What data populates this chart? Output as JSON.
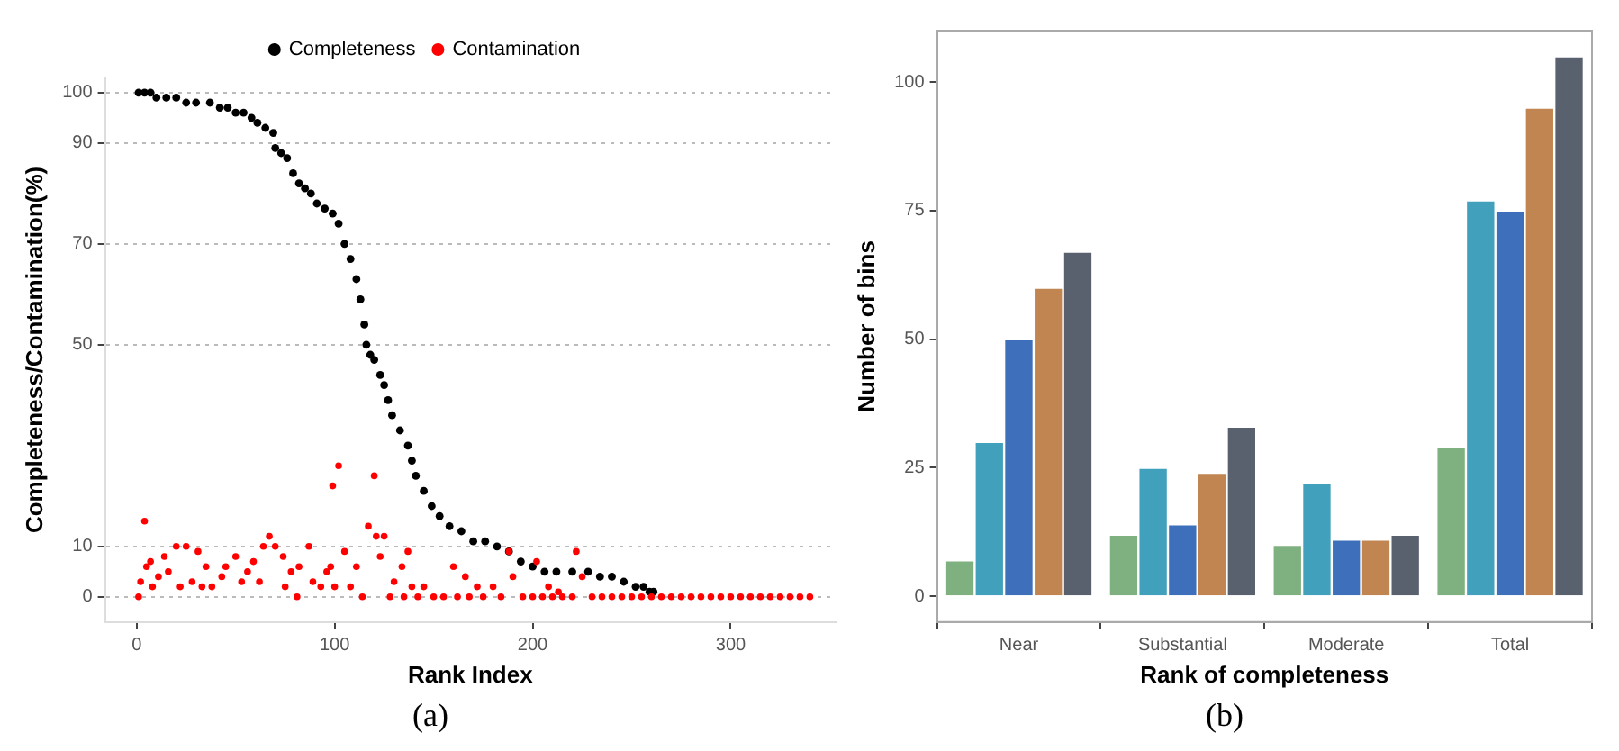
{
  "chart_data": [
    {
      "type": "scatter",
      "xlabel": "Rank Index",
      "ylabel": "Completeness/Contamination(%)",
      "xlim": [
        -16,
        353
      ],
      "ylim": [
        -5,
        103
      ],
      "xticks": [
        0,
        100,
        200,
        300
      ],
      "yticks": [
        0,
        10,
        50,
        70,
        90,
        100
      ],
      "grid": "y",
      "legend": "top",
      "marker": "circle",
      "annotations": [
        "(a)"
      ],
      "series": [
        {
          "name": "Completeness",
          "color": "#000000",
          "x": [
            1,
            4,
            7,
            10,
            15,
            20,
            25,
            30,
            37,
            42,
            46,
            50,
            54,
            58,
            61,
            65,
            69,
            70,
            73,
            76,
            79,
            82,
            85,
            88,
            91,
            95,
            99,
            102,
            105,
            108,
            111,
            113,
            115,
            116,
            118,
            120,
            123,
            125,
            127,
            129,
            133,
            137,
            139,
            141,
            145,
            149,
            153,
            158,
            164,
            170,
            176,
            182,
            188,
            194,
            200,
            206,
            212,
            220,
            228,
            234,
            240,
            246,
            252,
            256,
            259,
            261
          ],
          "values": [
            100,
            100,
            100,
            99,
            99,
            99,
            98,
            98,
            98,
            97,
            97,
            96,
            96,
            95,
            94,
            93,
            92,
            89,
            88,
            87,
            84,
            82,
            81,
            80,
            78,
            77,
            76,
            74,
            70,
            67,
            63,
            59,
            54,
            50,
            48,
            47,
            44,
            42,
            39,
            36,
            33,
            30,
            27,
            24,
            21,
            18,
            16,
            14,
            13,
            11,
            11,
            10,
            9,
            7,
            6,
            5,
            5,
            5,
            5,
            4,
            4,
            3,
            2,
            2,
            1,
            1
          ]
        },
        {
          "name": "Contamination",
          "color": "#ff0000",
          "x": [
            1,
            2,
            4,
            5,
            7,
            8,
            11,
            14,
            16,
            20,
            22,
            25,
            28,
            31,
            33,
            35,
            38,
            43,
            45,
            50,
            53,
            56,
            59,
            62,
            64,
            67,
            70,
            74,
            75,
            78,
            81,
            82,
            87,
            89,
            93,
            96,
            98,
            99,
            100,
            102,
            105,
            108,
            111,
            114,
            117,
            120,
            121,
            123,
            125,
            128,
            130,
            134,
            137,
            139,
            145,
            160,
            166,
            172,
            180,
            188,
            190,
            202,
            208,
            213,
            222,
            225,
            135,
            142,
            150,
            155,
            162,
            168,
            175,
            184,
            195,
            200,
            205,
            210,
            215,
            220,
            230,
            235,
            240,
            245,
            250,
            255,
            260,
            265,
            270,
            275,
            280,
            285,
            290,
            295,
            300,
            305,
            310,
            315,
            320,
            325,
            330,
            335,
            340
          ],
          "values": [
            0,
            3,
            15,
            6,
            7,
            2,
            4,
            8,
            5,
            10,
            2,
            10,
            3,
            9,
            2,
            6,
            2,
            4,
            6,
            8,
            3,
            5,
            7,
            3,
            10,
            12,
            10,
            8,
            2,
            5,
            0,
            6,
            10,
            3,
            2,
            5,
            6,
            22,
            2,
            26,
            9,
            2,
            6,
            0,
            14,
            24,
            12,
            8,
            12,
            0,
            3,
            6,
            9,
            2,
            2,
            6,
            4,
            2,
            2,
            9,
            4,
            7,
            2,
            1,
            9,
            4,
            0,
            0,
            0,
            0,
            0,
            0,
            0,
            0,
            0,
            0,
            0,
            0,
            0,
            0,
            0,
            0,
            0,
            0,
            0,
            0,
            0,
            0,
            0,
            0,
            0,
            0,
            0,
            0,
            0,
            0,
            0,
            0,
            0,
            0,
            0,
            0,
            0
          ]
        }
      ]
    },
    {
      "type": "bar",
      "xlabel": "Rank of completeness",
      "ylabel": "Number of bins",
      "categories": [
        "Near",
        "Substantial",
        "Moderate",
        "Total"
      ],
      "ylim": [
        -5,
        110
      ],
      "yticks": [
        0,
        25,
        50,
        75,
        100
      ],
      "grid": false,
      "legend": false,
      "annotations": [
        "(b)"
      ],
      "series": [
        {
          "color": "#7fb07f",
          "values": [
            7,
            12,
            10,
            29
          ]
        },
        {
          "color": "#41a0bb",
          "values": [
            30,
            25,
            22,
            77
          ]
        },
        {
          "color": "#3d6fba",
          "values": [
            50,
            14,
            11,
            75
          ]
        },
        {
          "color": "#c08550",
          "values": [
            60,
            24,
            11,
            95
          ]
        },
        {
          "color": "#5a616e",
          "values": [
            67,
            33,
            12,
            105
          ]
        }
      ]
    }
  ]
}
